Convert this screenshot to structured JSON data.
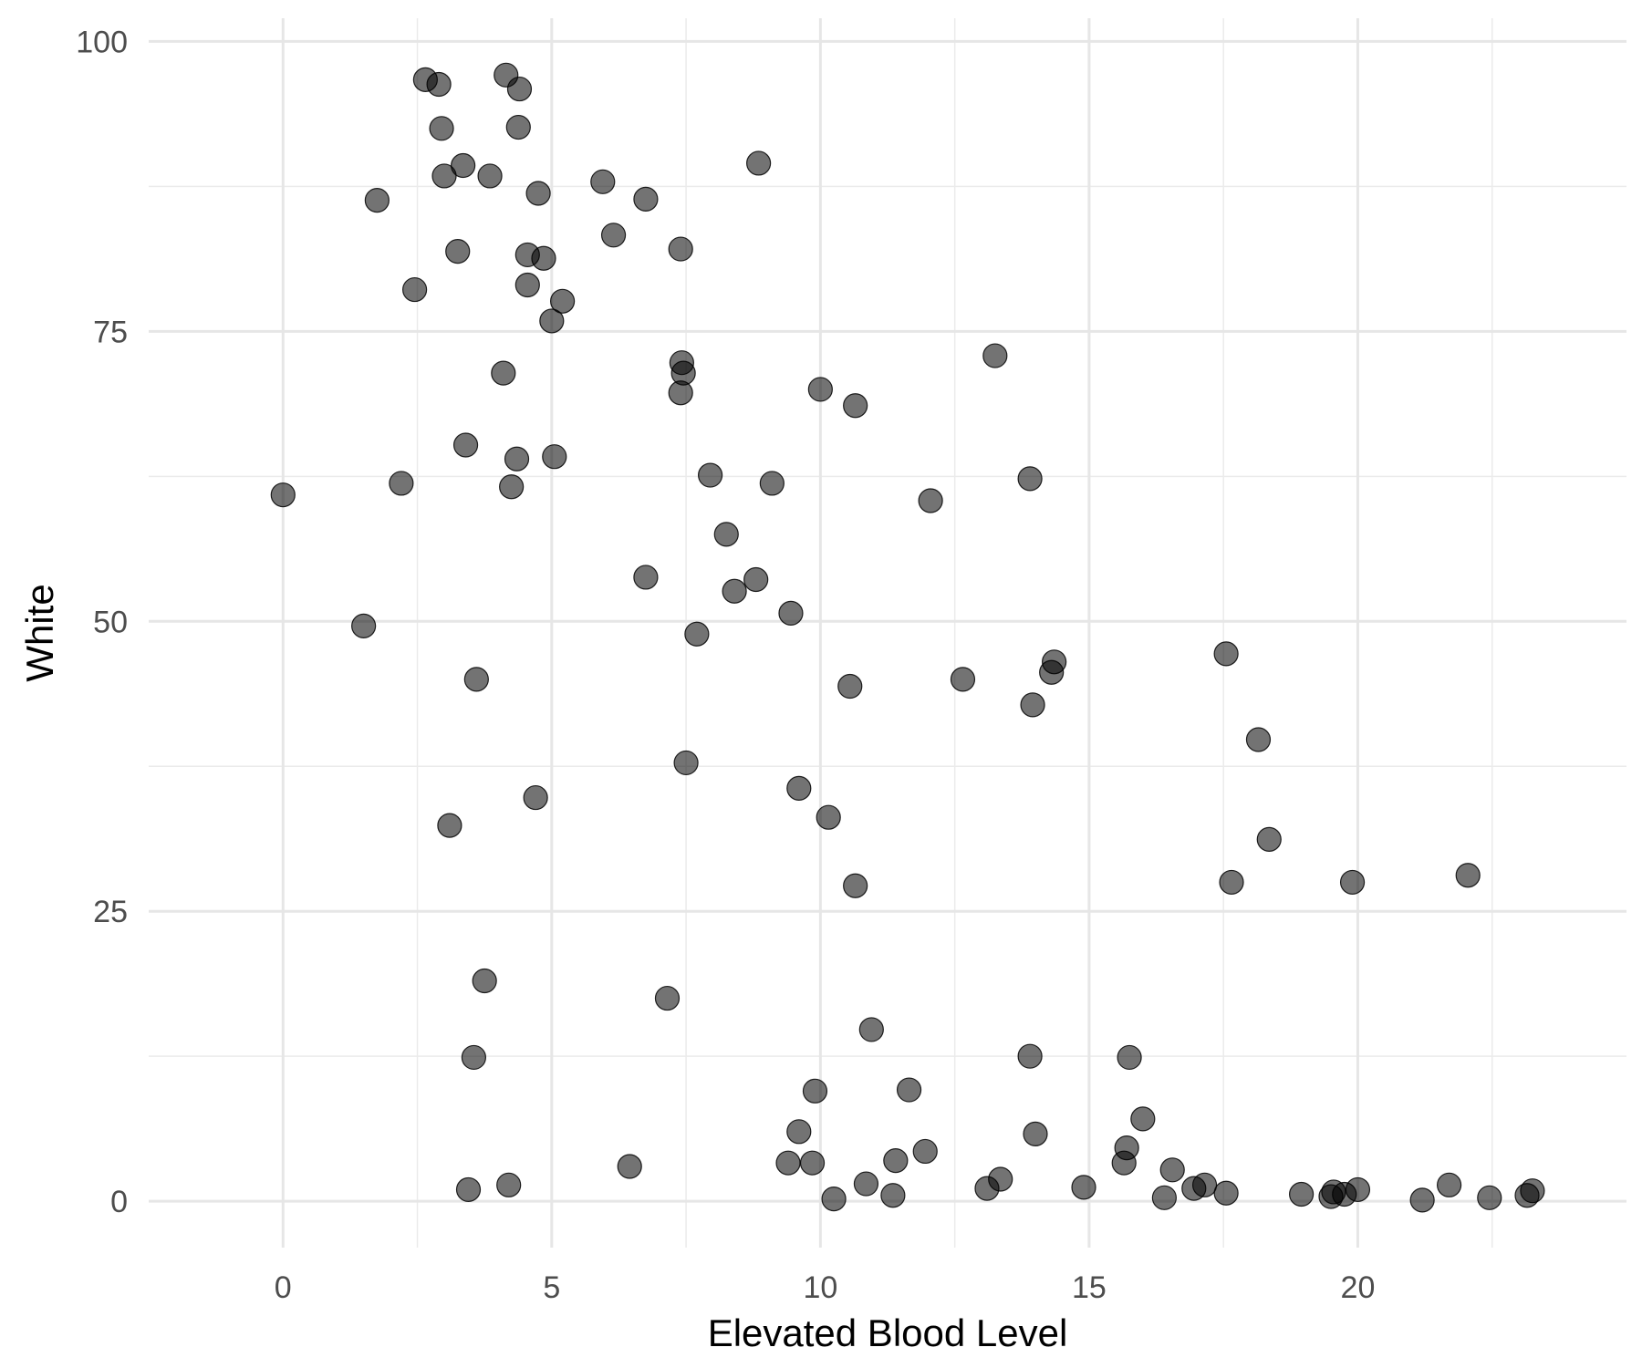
{
  "chart_data": {
    "type": "scatter",
    "title": "",
    "xlabel": "Elevated Blood Level",
    "ylabel": "White",
    "xlim": [
      -2.5,
      25
    ],
    "ylim": [
      -4,
      102
    ],
    "x_ticks": [
      0,
      5,
      10,
      15,
      20
    ],
    "y_ticks": [
      0,
      25,
      50,
      75,
      100
    ],
    "x_tick_labels": [
      "0",
      "5",
      "10",
      "15",
      "20"
    ],
    "y_tick_labels": [
      "0",
      "25",
      "50",
      "75",
      "100"
    ],
    "grid": true,
    "legend": "none",
    "point_color": "#000000",
    "point_opacity": 0.55,
    "series": [
      {
        "points": [
          [
            0.0,
            60.9
          ],
          [
            1.5,
            49.6
          ],
          [
            1.75,
            86.3
          ],
          [
            2.2,
            61.9
          ],
          [
            2.45,
            78.6
          ],
          [
            2.65,
            96.7
          ],
          [
            2.9,
            96.3
          ],
          [
            2.95,
            92.5
          ],
          [
            3.0,
            88.4
          ],
          [
            3.1,
            32.4
          ],
          [
            3.25,
            81.9
          ],
          [
            3.35,
            89.3
          ],
          [
            3.4,
            65.2
          ],
          [
            3.45,
            1.0
          ],
          [
            3.55,
            12.4
          ],
          [
            3.6,
            45.0
          ],
          [
            3.75,
            19.0
          ],
          [
            3.85,
            88.4
          ],
          [
            4.1,
            71.4
          ],
          [
            4.15,
            97.1
          ],
          [
            4.2,
            1.4
          ],
          [
            4.25,
            61.6
          ],
          [
            4.35,
            64.0
          ],
          [
            4.38,
            92.6
          ],
          [
            4.4,
            95.9
          ],
          [
            4.55,
            81.6
          ],
          [
            4.55,
            79.0
          ],
          [
            4.7,
            34.8
          ],
          [
            4.75,
            86.9
          ],
          [
            4.85,
            81.3
          ],
          [
            5.0,
            75.9
          ],
          [
            5.05,
            64.2
          ],
          [
            5.2,
            77.6
          ],
          [
            5.95,
            87.9
          ],
          [
            6.15,
            83.3
          ],
          [
            6.45,
            3.0
          ],
          [
            6.75,
            53.8
          ],
          [
            6.75,
            86.4
          ],
          [
            7.15,
            17.5
          ],
          [
            7.4,
            82.1
          ],
          [
            7.4,
            69.7
          ],
          [
            7.42,
            72.3
          ],
          [
            7.45,
            71.4
          ],
          [
            7.5,
            37.8
          ],
          [
            7.7,
            48.9
          ],
          [
            7.95,
            62.6
          ],
          [
            8.25,
            57.5
          ],
          [
            8.4,
            52.6
          ],
          [
            8.8,
            53.6
          ],
          [
            8.85,
            89.5
          ],
          [
            9.1,
            61.9
          ],
          [
            9.4,
            3.3
          ],
          [
            9.45,
            50.7
          ],
          [
            9.6,
            35.6
          ],
          [
            9.6,
            6.0
          ],
          [
            9.85,
            3.3
          ],
          [
            9.9,
            9.5
          ],
          [
            10.0,
            70.0
          ],
          [
            10.15,
            33.1
          ],
          [
            10.25,
            0.2
          ],
          [
            10.55,
            44.4
          ],
          [
            10.65,
            68.6
          ],
          [
            10.65,
            27.2
          ],
          [
            10.85,
            1.5
          ],
          [
            10.95,
            14.8
          ],
          [
            11.35,
            0.5
          ],
          [
            11.4,
            3.5
          ],
          [
            11.65,
            9.6
          ],
          [
            11.95,
            4.3
          ],
          [
            12.05,
            60.4
          ],
          [
            12.65,
            45.0
          ],
          [
            13.1,
            1.1
          ],
          [
            13.25,
            72.9
          ],
          [
            13.35,
            1.9
          ],
          [
            13.9,
            62.3
          ],
          [
            13.9,
            12.5
          ],
          [
            13.95,
            42.8
          ],
          [
            14.0,
            5.8
          ],
          [
            14.3,
            45.6
          ],
          [
            14.35,
            46.5
          ],
          [
            14.9,
            1.2
          ],
          [
            15.65,
            3.3
          ],
          [
            15.7,
            4.6
          ],
          [
            15.75,
            12.4
          ],
          [
            16.0,
            7.1
          ],
          [
            16.4,
            0.3
          ],
          [
            16.55,
            2.7
          ],
          [
            16.95,
            1.1
          ],
          [
            17.15,
            1.4
          ],
          [
            17.55,
            47.2
          ],
          [
            17.55,
            0.7
          ],
          [
            17.65,
            27.5
          ],
          [
            18.15,
            39.8
          ],
          [
            18.35,
            31.2
          ],
          [
            18.95,
            0.6
          ],
          [
            19.5,
            0.4
          ],
          [
            19.55,
            0.8
          ],
          [
            19.75,
            0.6
          ],
          [
            19.9,
            27.5
          ],
          [
            20.0,
            1.0
          ],
          [
            21.2,
            0.1
          ],
          [
            21.7,
            1.4
          ],
          [
            22.05,
            28.1
          ],
          [
            22.45,
            0.3
          ],
          [
            23.15,
            0.5
          ],
          [
            23.25,
            0.9
          ]
        ]
      }
    ]
  }
}
